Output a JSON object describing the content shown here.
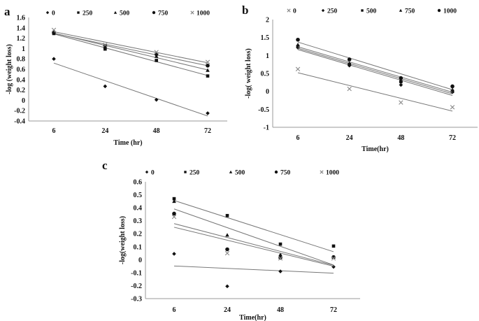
{
  "chart_data": [
    {
      "panel_label": "a",
      "type": "scatter",
      "trendlines": "linear",
      "categories": [
        "6",
        "24",
        "48",
        "72"
      ],
      "xlabel": "Time (hr)",
      "ylabel": "-log (weight loss)",
      "ylim": [
        -0.4,
        1.6
      ],
      "yticks": [
        "1.6",
        "1.4",
        "1.2",
        "1",
        "0.8",
        "0.6",
        "0.4",
        "0.2",
        "0",
        "-0.2",
        "-0.4"
      ],
      "legend_placement": "top",
      "series": [
        {
          "name": "0",
          "marker": "diamond",
          "color": "#111111",
          "values": [
            0.8,
            0.27,
            0.01,
            -0.25
          ]
        },
        {
          "name": "250",
          "marker": "square",
          "color": "#111111",
          "values": [
            1.29,
            0.99,
            0.77,
            0.47
          ]
        },
        {
          "name": "500",
          "marker": "triangle",
          "color": "#111111",
          "values": [
            1.31,
            1.03,
            0.85,
            0.58
          ]
        },
        {
          "name": "750",
          "marker": "circle",
          "color": "#111111",
          "values": [
            1.31,
            1.05,
            0.89,
            0.67
          ]
        },
        {
          "name": "1000",
          "marker": "x",
          "color": "#888888",
          "values": [
            1.36,
            1.07,
            0.93,
            0.74
          ]
        }
      ]
    },
    {
      "panel_label": "b",
      "type": "scatter",
      "trendlines": "linear",
      "categories": [
        "6",
        "24",
        "48",
        "72"
      ],
      "xlabel": "Time(hr)",
      "ylabel": "-log( weight loss)",
      "ylim": [
        -1,
        2
      ],
      "yticks": [
        "2",
        "1.5",
        "1",
        "0.5",
        "0",
        "-0.5",
        "-1"
      ],
      "legend_placement": "top",
      "series": [
        {
          "name": "0",
          "marker": "x",
          "color": "#888888",
          "values": [
            0.62,
            0.07,
            -0.31,
            -0.44
          ]
        },
        {
          "name": "250",
          "marker": "diamond",
          "color": "#111111",
          "values": [
            1.22,
            0.72,
            0.18,
            -0.02
          ]
        },
        {
          "name": "500",
          "marker": "square",
          "color": "#111111",
          "values": [
            1.25,
            0.75,
            0.27,
            0.0
          ]
        },
        {
          "name": "750",
          "marker": "triangle",
          "color": "#111111",
          "values": [
            1.3,
            0.78,
            0.31,
            0.05
          ]
        },
        {
          "name": "1000",
          "marker": "circle",
          "color": "#111111",
          "values": [
            1.44,
            0.89,
            0.37,
            0.14
          ]
        }
      ]
    },
    {
      "panel_label": "c",
      "type": "scatter",
      "trendlines": "linear",
      "categories": [
        "6",
        "24",
        "48",
        "72"
      ],
      "xlabel": "Time(hr)",
      "ylabel": "-log(weight loss)",
      "ylim": [
        -0.3,
        0.6
      ],
      "yticks": [
        "0.6",
        "0.5",
        "0.4",
        "0.3",
        "0.2",
        "0.1",
        "0",
        "-0.1",
        "-0.2",
        "-0.3"
      ],
      "legend_placement": "top",
      "series": [
        {
          "name": "0",
          "marker": "diamond",
          "color": "#111111",
          "values": [
            0.045,
            -0.205,
            -0.09,
            -0.055
          ]
        },
        {
          "name": "250",
          "marker": "square",
          "color": "#111111",
          "values": [
            0.47,
            0.34,
            0.12,
            0.105
          ]
        },
        {
          "name": "500",
          "marker": "triangle",
          "color": "#111111",
          "values": [
            0.45,
            0.19,
            0.04,
            0.02
          ]
        },
        {
          "name": "750",
          "marker": "circle",
          "color": "#111111",
          "values": [
            0.355,
            0.08,
            0.015,
            0.02
          ]
        },
        {
          "name": "1000",
          "marker": "x",
          "color": "#888888",
          "values": [
            0.33,
            0.05,
            0.01,
            0.01
          ]
        }
      ]
    }
  ]
}
